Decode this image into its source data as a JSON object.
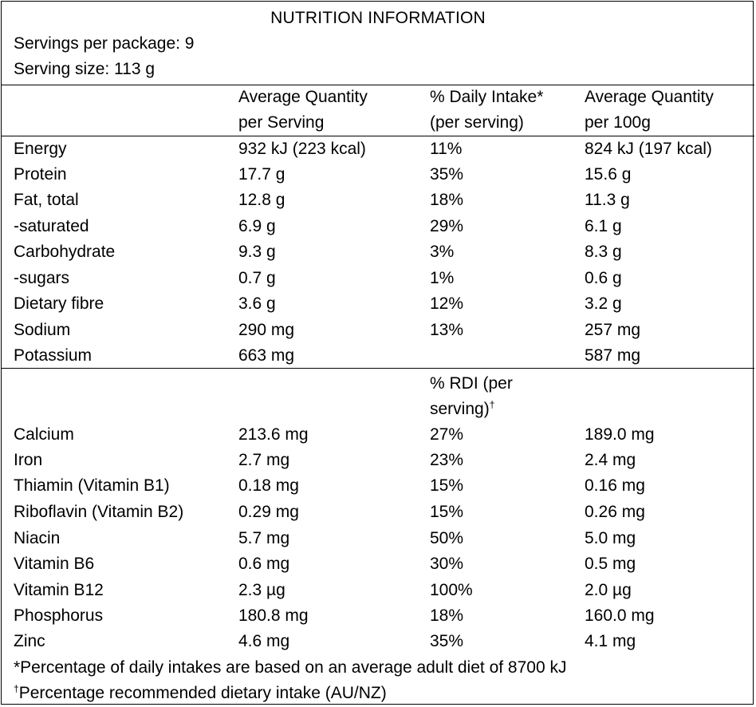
{
  "title": "NUTRITION INFORMATION",
  "servings_per_package": "Servings per package: 9",
  "serving_size": "Serving size: 113 g",
  "headers": {
    "avg_serving_l1": "Average Quantity",
    "avg_serving_l2": "per Serving",
    "daily_intake_l1": "% Daily Intake*",
    "daily_intake_l2": "(per serving)",
    "avg_100g_l1": "Average Quantity",
    "avg_100g_l2": "per 100g",
    "rdi_l1": "% RDI (per",
    "rdi_l2": "serving)",
    "rdi_mark": "†"
  },
  "rows": [
    {
      "name": "Energy",
      "serving": "932 kJ (223 kcal)",
      "pct": "11%",
      "per100": "824 kJ (197 kcal)"
    },
    {
      "name": "Protein",
      "serving": "17.7 g",
      "pct": "35%",
      "per100": "15.6 g"
    },
    {
      "name": "Fat, total",
      "serving": "12.8 g",
      "pct": "18%",
      "per100": "11.3 g"
    },
    {
      "name": "-saturated",
      "serving": "6.9 g",
      "pct": "29%",
      "per100": "6.1 g"
    },
    {
      "name": "Carbohydrate",
      "serving": "9.3 g",
      "pct": "3%",
      "per100": "8.3 g"
    },
    {
      "name": "-sugars",
      "serving": "0.7 g",
      "pct": "1%",
      "per100": "0.6 g"
    },
    {
      "name": "Dietary fibre",
      "serving": "3.6 g",
      "pct": "12%",
      "per100": "3.2 g"
    },
    {
      "name": "Sodium",
      "serving": "290 mg",
      "pct": "13%",
      "per100": "257 mg"
    },
    {
      "name": "Potassium",
      "serving": "663 mg",
      "pct": "",
      "per100": "587 mg"
    }
  ],
  "micro_rows": [
    {
      "name": "Calcium",
      "serving": "213.6 mg",
      "pct": "27%",
      "per100": "189.0 mg"
    },
    {
      "name": "Iron",
      "serving": "2.7 mg",
      "pct": "23%",
      "per100": "2.4 mg"
    },
    {
      "name": "Thiamin (Vitamin B1)",
      "serving": "0.18 mg",
      "pct": "15%",
      "per100": "0.16 mg"
    },
    {
      "name": "Riboflavin (Vitamin B2)",
      "serving": "0.29 mg",
      "pct": "15%",
      "per100": "0.26 mg"
    },
    {
      "name": "Niacin",
      "serving": "5.7 mg",
      "pct": "50%",
      "per100": "5.0 mg"
    },
    {
      "name": "Vitamin B6",
      "serving": "0.6 mg",
      "pct": "30%",
      "per100": "0.5 mg"
    },
    {
      "name": "Vitamin B12",
      "serving": "2.3 µg",
      "pct": "100%",
      "per100": "2.0 µg"
    },
    {
      "name": "Phosphorus",
      "serving": "180.8 mg",
      "pct": "18%",
      "per100": "160.0 mg"
    },
    {
      "name": "Zinc",
      "serving": "4.6 mg",
      "pct": "35%",
      "per100": "4.1 mg"
    }
  ],
  "footnotes": {
    "daily_intake": "*Percentage of daily intakes are based on an average adult diet of 8700 kJ",
    "rdi_mark": "†",
    "rdi": "Percentage recommended dietary intake (AU/NZ)"
  }
}
